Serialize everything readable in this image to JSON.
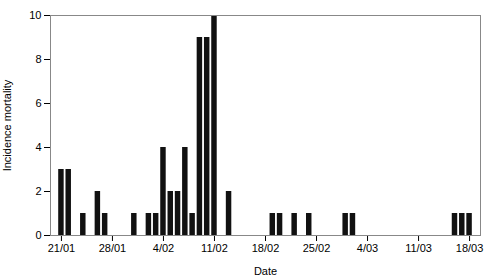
{
  "chart_data": {
    "type": "bar",
    "x": [
      0,
      1,
      3,
      5,
      6,
      10,
      12,
      13,
      14,
      15,
      16,
      17,
      18,
      19,
      20,
      21,
      23,
      29,
      30,
      32,
      34,
      39,
      40,
      54,
      55,
      56
    ],
    "values": [
      3,
      3,
      1,
      2,
      1,
      1,
      1,
      1,
      4,
      2,
      2,
      4,
      1,
      9,
      9,
      10,
      2,
      1,
      1,
      1,
      1,
      1,
      1,
      1,
      1,
      1
    ],
    "color": "#111111",
    "xlabel": "Date",
    "ylabel": "Incidence mortality",
    "xlim": [
      -1.5,
      57.5
    ],
    "xticks": [
      {
        "value": 0,
        "label": "21/01"
      },
      {
        "value": 7,
        "label": "28/01"
      },
      {
        "value": 14,
        "label": "4/02"
      },
      {
        "value": 21,
        "label": "11/02"
      },
      {
        "value": 28,
        "label": "18/02"
      },
      {
        "value": 35,
        "label": "25/02"
      },
      {
        "value": 42,
        "label": "4/03"
      },
      {
        "value": 49,
        "label": "11/03"
      },
      {
        "value": 56,
        "label": "18/03"
      }
    ],
    "ylim": [
      0,
      10
    ],
    "yticks": [
      0,
      2,
      4,
      6,
      8,
      10
    ],
    "grid": false
  }
}
